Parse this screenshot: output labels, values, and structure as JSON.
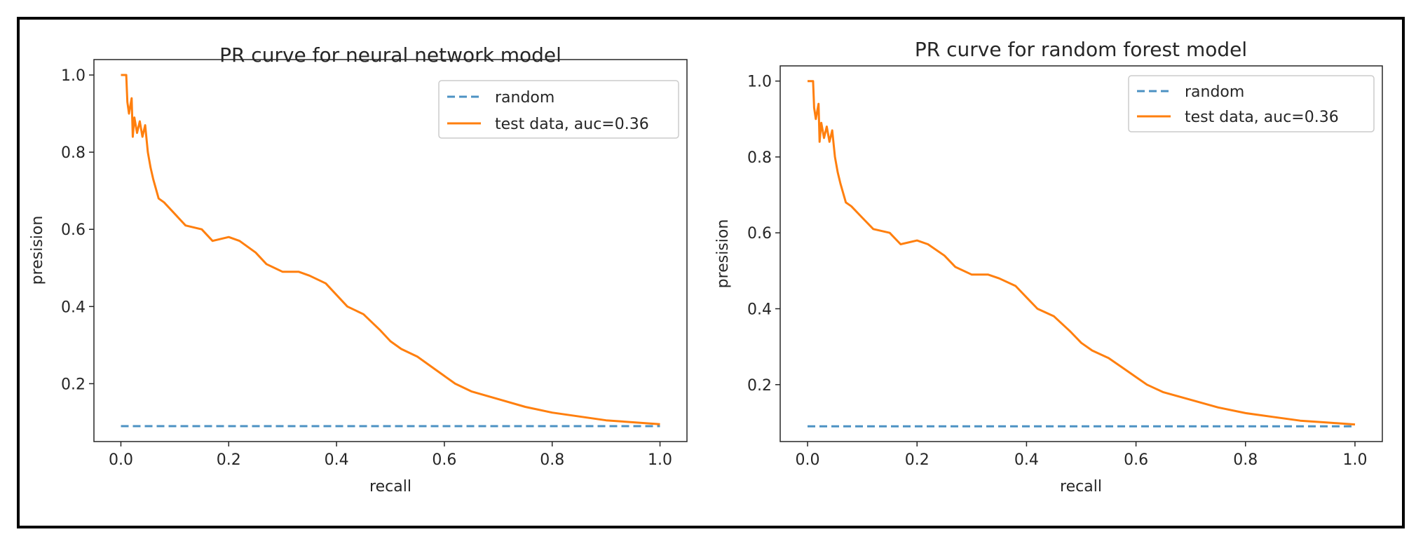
{
  "colors": {
    "random": "#4c92c3",
    "test": "#ff7f0e",
    "axis": "#262626",
    "legend_border": "#cccccc"
  },
  "chart_data": [
    {
      "type": "line",
      "title": "PR curve for neural network model",
      "xlabel": "recall",
      "ylabel": "presision",
      "xlim": [
        -0.05,
        1.05
      ],
      "ylim": [
        0.05,
        1.04
      ],
      "xticks": [
        "0.0",
        "0.2",
        "0.4",
        "0.6",
        "0.8",
        "1.0"
      ],
      "yticks": [
        "0.2",
        "0.4",
        "0.6",
        "0.8",
        "1.0"
      ],
      "grid": false,
      "legend_position": "top-right",
      "series": [
        {
          "name": "random",
          "style": "dashed",
          "x": [
            0.0,
            1.0
          ],
          "y": [
            0.09,
            0.09
          ]
        },
        {
          "name": "test data, auc=0.36",
          "style": "solid",
          "x": [
            0.0,
            0.01,
            0.012,
            0.015,
            0.02,
            0.022,
            0.025,
            0.03,
            0.035,
            0.04,
            0.045,
            0.05,
            0.055,
            0.06,
            0.07,
            0.08,
            0.1,
            0.12,
            0.15,
            0.17,
            0.2,
            0.22,
            0.25,
            0.27,
            0.3,
            0.33,
            0.35,
            0.38,
            0.4,
            0.42,
            0.45,
            0.48,
            0.5,
            0.52,
            0.55,
            0.58,
            0.6,
            0.62,
            0.65,
            0.7,
            0.75,
            0.8,
            0.85,
            0.9,
            0.95,
            1.0
          ],
          "y": [
            1.0,
            1.0,
            0.93,
            0.9,
            0.94,
            0.84,
            0.89,
            0.85,
            0.88,
            0.84,
            0.87,
            0.8,
            0.76,
            0.73,
            0.68,
            0.67,
            0.64,
            0.61,
            0.6,
            0.57,
            0.58,
            0.57,
            0.54,
            0.51,
            0.49,
            0.49,
            0.48,
            0.46,
            0.43,
            0.4,
            0.38,
            0.34,
            0.31,
            0.29,
            0.27,
            0.24,
            0.22,
            0.2,
            0.18,
            0.16,
            0.14,
            0.125,
            0.115,
            0.105,
            0.1,
            0.095
          ]
        }
      ]
    },
    {
      "type": "line",
      "title": "PR curve for random forest model",
      "xlabel": "recall",
      "ylabel": "presision",
      "xlim": [
        -0.05,
        1.05
      ],
      "ylim": [
        0.05,
        1.04
      ],
      "xticks": [
        "0.0",
        "0.2",
        "0.4",
        "0.6",
        "0.8",
        "1.0"
      ],
      "yticks": [
        "0.2",
        "0.4",
        "0.6",
        "0.8",
        "1.0"
      ],
      "grid": false,
      "legend_position": "top-right",
      "series": [
        {
          "name": "random",
          "style": "dashed",
          "x": [
            0.0,
            1.0
          ],
          "y": [
            0.09,
            0.09
          ]
        },
        {
          "name": "test data, auc=0.36",
          "style": "solid",
          "x": [
            0.0,
            0.01,
            0.012,
            0.015,
            0.02,
            0.022,
            0.025,
            0.03,
            0.035,
            0.04,
            0.045,
            0.05,
            0.055,
            0.06,
            0.07,
            0.08,
            0.1,
            0.12,
            0.15,
            0.17,
            0.2,
            0.22,
            0.25,
            0.27,
            0.3,
            0.33,
            0.35,
            0.38,
            0.4,
            0.42,
            0.45,
            0.48,
            0.5,
            0.52,
            0.55,
            0.58,
            0.6,
            0.62,
            0.65,
            0.7,
            0.75,
            0.8,
            0.85,
            0.9,
            0.95,
            1.0
          ],
          "y": [
            1.0,
            1.0,
            0.93,
            0.9,
            0.94,
            0.84,
            0.89,
            0.85,
            0.88,
            0.84,
            0.87,
            0.8,
            0.76,
            0.73,
            0.68,
            0.67,
            0.64,
            0.61,
            0.6,
            0.57,
            0.58,
            0.57,
            0.54,
            0.51,
            0.49,
            0.49,
            0.48,
            0.46,
            0.43,
            0.4,
            0.38,
            0.34,
            0.31,
            0.29,
            0.27,
            0.24,
            0.22,
            0.2,
            0.18,
            0.16,
            0.14,
            0.125,
            0.115,
            0.105,
            0.1,
            0.095
          ]
        }
      ]
    }
  ]
}
